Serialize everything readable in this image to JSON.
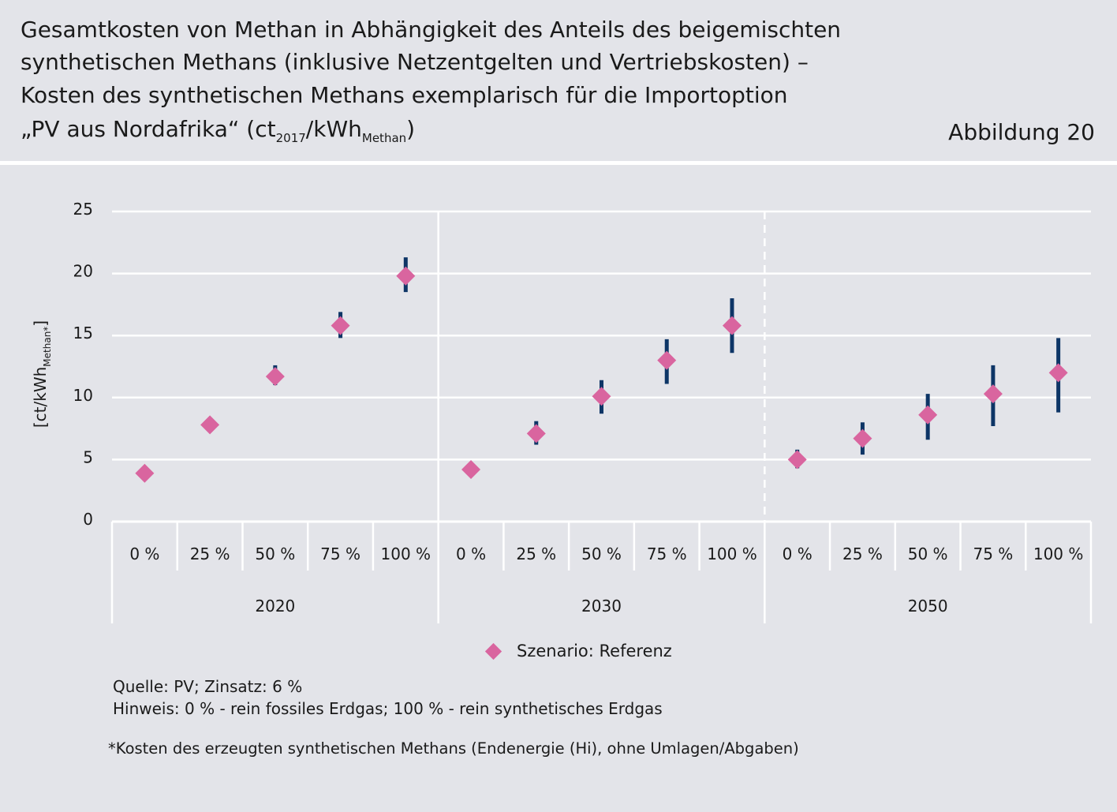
{
  "header": {
    "title_line1": "Gesamtkosten von Methan in Abhängigkeit des Anteils des beigemischten",
    "title_line2": "synthetischen Methans (inklusive Netzentgelten und Vertriebskosten) –",
    "title_line3": "Kosten des synthetischen Methans exemplarisch für die Importoption",
    "title_line4_a": "„PV aus Nordafrika“ (ct",
    "title_line4_sub1": "2017",
    "title_line4_b": "/kWh",
    "title_line4_sub2": "Methan",
    "title_line4_c": ")",
    "figure_label": "Abbildung 20"
  },
  "legend": {
    "label": "Szenario: Referenz"
  },
  "notes": {
    "source": "Quelle: PV; Zinsatz: 6 %",
    "hint": "Hinweis: 0 % - rein fossiles Erdgas; 100 % - rein synthetisches Erdgas",
    "footnote": "*Kosten des erzeugten synthetischen Methans (Endenergie (Hi), ohne Umlagen/Abgaben)"
  },
  "colors": {
    "marker": "#d9659f",
    "errorbar": "#0d3566",
    "background": "#e3e4e9",
    "grid": "#ffffff"
  },
  "chart_data": {
    "type": "scatter",
    "title": "",
    "ylabel": "[ct/kWh",
    "ylabel_sub": "Methan*",
    "ylabel_end": "]",
    "ylim": [
      0,
      25
    ],
    "yticks": [
      0,
      5,
      10,
      15,
      20,
      25
    ],
    "grid": true,
    "legend_position": "bottom",
    "groups": [
      {
        "label": "2020",
        "separator_after": "solid",
        "categories": [
          "0 %",
          "25 %",
          "50 %",
          "75 %",
          "100 %"
        ]
      },
      {
        "label": "2030",
        "separator_after": "dashed",
        "categories": [
          "0 %",
          "25 %",
          "50 %",
          "75 %",
          "100 %"
        ]
      },
      {
        "label": "2050",
        "separator_after": "none",
        "categories": [
          "0 %",
          "25 %",
          "50 %",
          "75 %",
          "100 %"
        ]
      }
    ],
    "series": [
      {
        "name": "Szenario: Referenz",
        "values": [
          3.9,
          7.8,
          11.7,
          15.8,
          19.8,
          4.2,
          7.1,
          10.1,
          13.0,
          15.8,
          5.0,
          6.7,
          8.6,
          10.3,
          12.0
        ],
        "error_low": [
          null,
          null,
          11.0,
          14.8,
          18.5,
          null,
          6.2,
          8.7,
          11.1,
          13.6,
          4.3,
          5.4,
          6.6,
          7.7,
          8.8
        ],
        "error_high": [
          null,
          null,
          12.6,
          16.9,
          21.3,
          null,
          8.1,
          11.4,
          14.7,
          18.0,
          5.8,
          8.0,
          10.3,
          12.6,
          14.8
        ]
      }
    ]
  }
}
